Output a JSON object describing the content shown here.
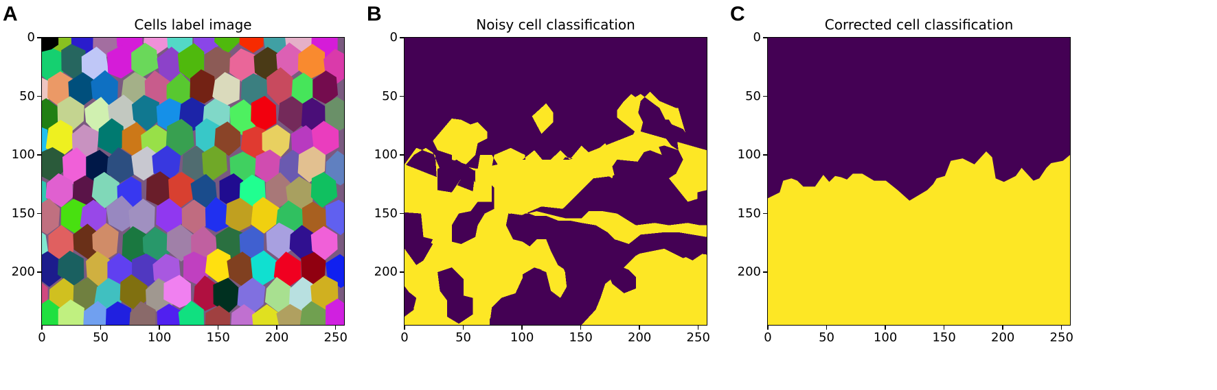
{
  "panels": [
    {
      "letter": "A",
      "title": "Cells label image"
    },
    {
      "letter": "B",
      "title": "Noisy cell classification"
    },
    {
      "letter": "C",
      "title": "Corrected cell classification"
    }
  ],
  "axis": {
    "x_ticks": [
      "0",
      "50",
      "100",
      "150",
      "200",
      "250"
    ],
    "y_ticks": [
      "0",
      "50",
      "100",
      "150",
      "200"
    ]
  },
  "colors": {
    "class0": "#440154",
    "class1": "#fde725"
  },
  "chart_data": [
    {
      "type": "heatmap",
      "title": "Cells label image",
      "panel": "A",
      "xlabel": "",
      "ylabel": "",
      "xlim": [
        0,
        256
      ],
      "ylim": [
        245,
        0
      ],
      "x_ticks": [
        0,
        50,
        100,
        150,
        200,
        250
      ],
      "y_ticks": [
        0,
        50,
        100,
        150,
        200
      ],
      "grid": false,
      "description": "Label image of roughly 12x12 Voronoi-like cells, each with a random color",
      "cell_colors": [
        "#000000",
        "#89c120",
        "#2a1ccc",
        "#a36ea0",
        "#d51cd8",
        "#ef90d8",
        "#53d8c6",
        "#8a46e8",
        "#4fb90d",
        "#f72b00",
        "#40a0a4",
        "#e5b0c8",
        "#d51cd8",
        "#15d070",
        "#26665f",
        "#bfc7f7",
        "#d51cd8",
        "#6ad85a",
        "#8c42c9",
        "#4fb90d",
        "#8c5b56",
        "#ea6699",
        "#4a3a16",
        "#dc60b4",
        "#f98a2f",
        "#da3aaa",
        "#eec6c2",
        "#eb9966",
        "#004f7c",
        "#0e70c2",
        "#a4b088",
        "#c85c8c",
        "#58c830",
        "#732214",
        "#dadabc",
        "#3b7f80",
        "#c84a5e",
        "#46e55a",
        "#740c4e",
        "#217f14",
        "#c4d490",
        "#d0f0b0",
        "#c2c8c0",
        "#107890",
        "#1590e8",
        "#1c24a8",
        "#80d8c8",
        "#4ef060",
        "#f2000e",
        "#742a5a",
        "#4a0e78",
        "#6a9068",
        "#20c0f0",
        "#eef020",
        "#c892c0",
        "#007a70",
        "#cc7818",
        "#98e048",
        "#38a050",
        "#38c8c8",
        "#8a4428",
        "#e03a30",
        "#e8d060",
        "#b83ac0",
        "#ea3dbe",
        "#2a5a3a",
        "#f060d8",
        "#001848",
        "#2c4e80",
        "#c8c8d0",
        "#3838e0",
        "#506c70",
        "#70a828",
        "#40d060",
        "#d04cb0",
        "#6a5ab0",
        "#e2c090",
        "#6080c0",
        "#30c8b0",
        "#e060d0",
        "#5a1448",
        "#80d8b8",
        "#3838f0",
        "#6a1e2a",
        "#d84030",
        "#1a4c8c",
        "#200c90",
        "#20ff90",
        "#a87878",
        "#a8a060",
        "#10c060",
        "#c07080",
        "#48e010",
        "#9848e8",
        "#9888c0",
        "#a090c0",
        "#9038f0",
        "#c06c80",
        "#2030f0",
        "#c0a020",
        "#f0d010",
        "#30c060",
        "#a86020",
        "#6060f0",
        "#80e8d0",
        "#e06060",
        "#6a3018",
        "#d08c68",
        "#1a7840",
        "#28986a",
        "#a080a8",
        "#c060a0",
        "#2a7040",
        "#4060d0",
        "#a8a0e0",
        "#301090",
        "#f060d8",
        "#1c1c8c",
        "#1a6060",
        "#d0b040",
        "#6040f0",
        "#5038c0",
        "#a858e0",
        "#c040c0",
        "#ffe010",
        "#804020",
        "#10e0d0",
        "#f00020",
        "#900010",
        "#1020f0",
        "#d04880",
        "#d0c020",
        "#708040",
        "#40c0c0",
        "#807010",
        "#a09890",
        "#f080f0",
        "#b01040",
        "#003020",
        "#8070e0",
        "#a8e090",
        "#b8e0e0",
        "#d0b020",
        "#20e040",
        "#c0f080",
        "#70a0f0",
        "#2020e0",
        "#8a6a6a",
        "#5020f0",
        "#10e080",
        "#a04040",
        "#c070d0",
        "#e0e020",
        "#b0a060",
        "#70a050",
        "#d020e0",
        "#50a040",
        "#4010c0",
        "#307050",
        "#b03070",
        "#4080f0",
        "#f080b0",
        "#d8a0d8",
        "#ff10c0",
        "#e0f010",
        "#801848",
        "#e8f0e8",
        "#40e080",
        "#80ff40"
      ]
    },
    {
      "type": "heatmap",
      "title": "Noisy cell classification",
      "panel": "B",
      "xlim": [
        0,
        256
      ],
      "ylim": [
        245,
        0
      ],
      "x_ticks": [
        0,
        50,
        100,
        150,
        200,
        250
      ],
      "y_ticks": [
        0,
        50,
        100,
        150,
        200
      ],
      "classes": [
        0,
        1
      ],
      "class_colors": [
        "#440154",
        "#fde725"
      ],
      "description": "Binary classification with scattered noisy cells; mostly class 0 on top (y<70), mostly class 1 below with purple holes"
    },
    {
      "type": "heatmap",
      "title": "Corrected cell classification",
      "panel": "C",
      "xlim": [
        0,
        256
      ],
      "ylim": [
        245,
        0
      ],
      "x_ticks": [
        0,
        50,
        100,
        150,
        200,
        250
      ],
      "y_ticks": [
        0,
        50,
        100,
        150,
        200
      ],
      "classes": [
        0,
        1
      ],
      "class_colors": [
        "#440154",
        "#fde725"
      ],
      "description": "Clean split: class 0 above a jagged boundary near y≈100-140, class 1 below",
      "boundary": [
        [
          0,
          137
        ],
        [
          10,
          132
        ],
        [
          13,
          122
        ],
        [
          20,
          120
        ],
        [
          25,
          122
        ],
        [
          30,
          127
        ],
        [
          40,
          127
        ],
        [
          47,
          117
        ],
        [
          52,
          123
        ],
        [
          57,
          118
        ],
        [
          62,
          119
        ],
        [
          67,
          121
        ],
        [
          72,
          116
        ],
        [
          80,
          116
        ],
        [
          90,
          122
        ],
        [
          100,
          122
        ],
        [
          110,
          130
        ],
        [
          120,
          139
        ],
        [
          130,
          133
        ],
        [
          135,
          130
        ],
        [
          140,
          125
        ],
        [
          143,
          120
        ],
        [
          150,
          118
        ],
        [
          155,
          105
        ],
        [
          165,
          103
        ],
        [
          175,
          108
        ],
        [
          185,
          97
        ],
        [
          190,
          102
        ],
        [
          193,
          120
        ],
        [
          200,
          123
        ],
        [
          210,
          118
        ],
        [
          215,
          111
        ],
        [
          225,
          122
        ],
        [
          230,
          120
        ],
        [
          236,
          111
        ],
        [
          240,
          107
        ],
        [
          250,
          105
        ],
        [
          256,
          100
        ]
      ]
    }
  ]
}
